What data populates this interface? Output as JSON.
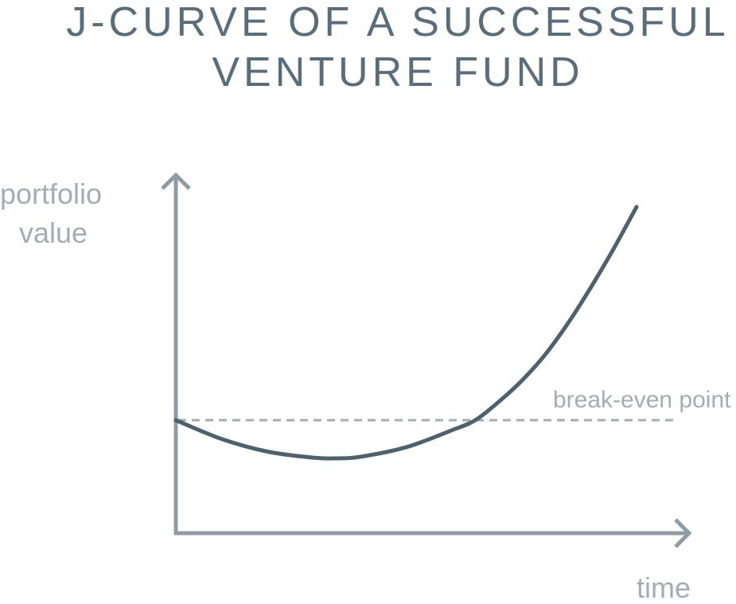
{
  "colors": {
    "title": "#5a6d7a",
    "axis": "#8f9ca5",
    "curve": "#4f616d",
    "reference_line": "#a3adb4",
    "label": "#a3adb4"
  },
  "chart_data": {
    "type": "line",
    "title": "J-CURVE OF A SUCCESSFUL VENTURE FUND",
    "title_lines": [
      "J-CURVE OF A SUCCESSFUL",
      "VENTURE FUND"
    ],
    "xlabel": "time",
    "ylabel": "portfolio value",
    "ylabel_lines": [
      "portfolio",
      "value"
    ],
    "axis_ticks": "none",
    "grid": false,
    "xlim": [
      0,
      100
    ],
    "ylim": [
      -25,
      100
    ],
    "series": [
      {
        "x": [
          0,
          10,
          20,
          30,
          35,
          40,
          50,
          60,
          65,
          70,
          75,
          80,
          85,
          90,
          95,
          100
        ],
        "y": [
          0,
          -6.3,
          -10.5,
          -12.5,
          -12.7,
          -12.2,
          -9,
          -3.3,
          0,
          6,
          13,
          21.5,
          32,
          44,
          57,
          71
        ]
      }
    ],
    "reference_lines": [
      {
        "label": "break-even point",
        "y": 0,
        "style": "dashed"
      }
    ]
  }
}
